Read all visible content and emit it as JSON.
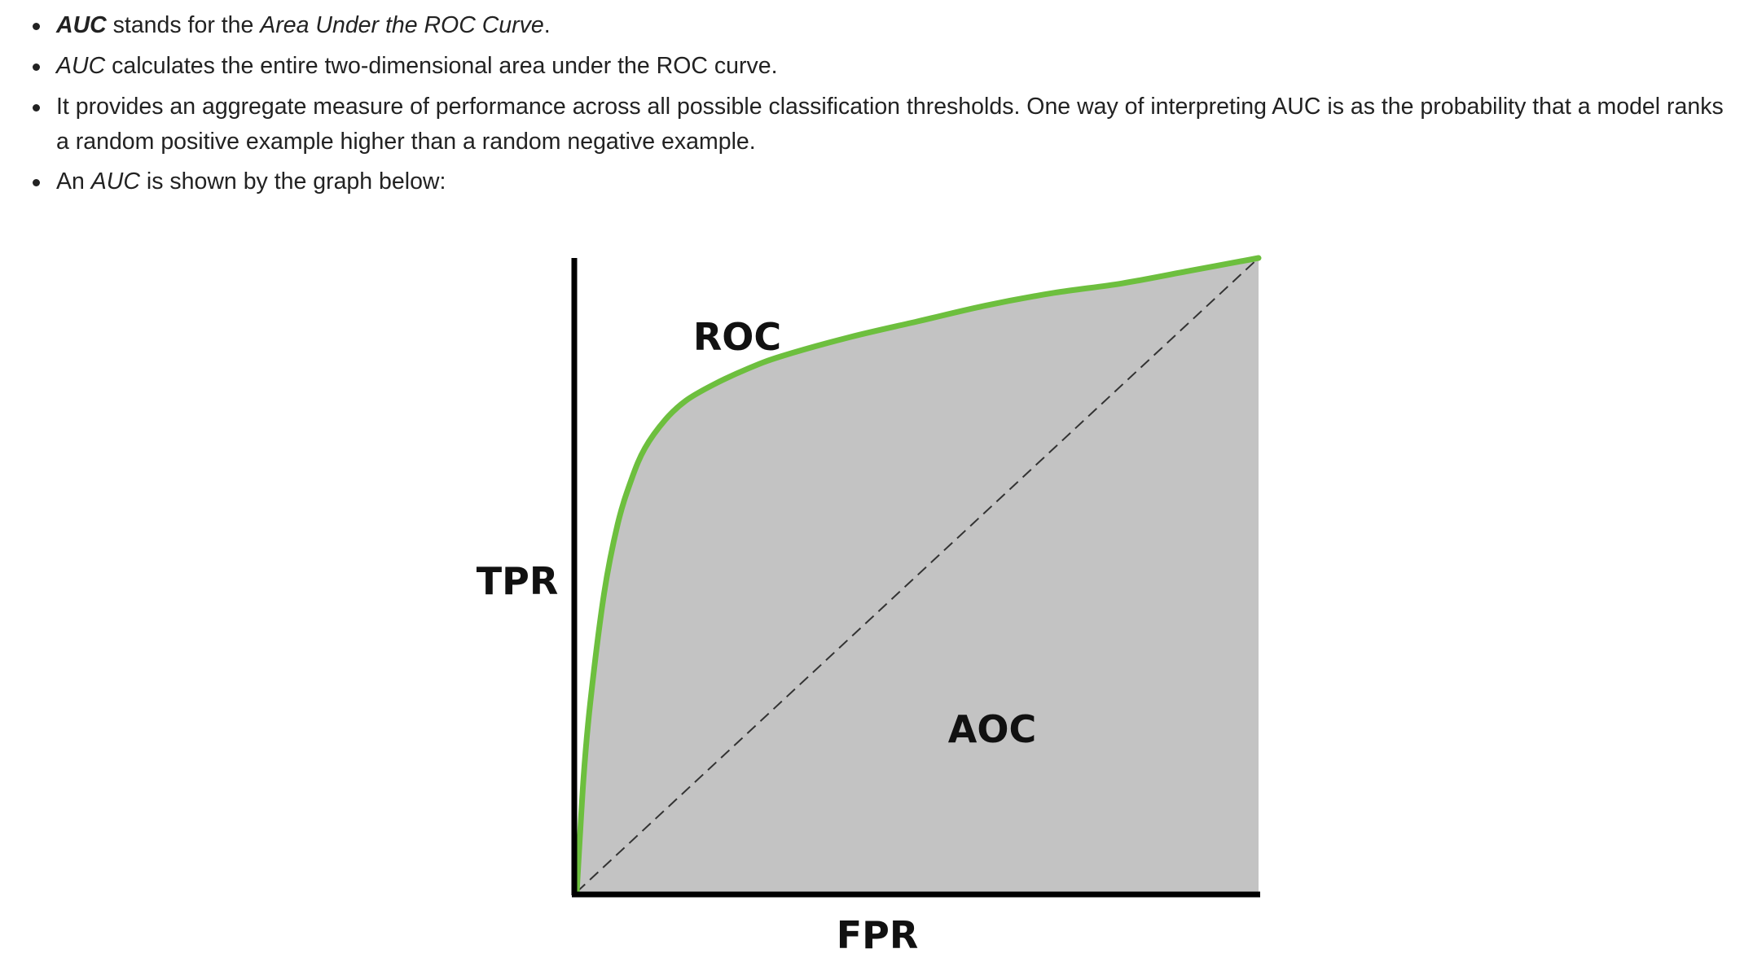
{
  "bullets": [
    {
      "a": "AUC",
      "b": " stands for the ",
      "c": "Area Under the ROC Curve",
      "d": "."
    },
    {
      "a": "AUC",
      "b": " calculates the entire two-dimensional area under the ROC curve."
    },
    {
      "text": "It provides an aggregate measure of performance across all possible classification thresholds. One way of interpreting AUC is as the probability that a model ranks a random positive example higher than a random negative example."
    },
    {
      "a": "An ",
      "b": "AUC",
      "c": " is shown by the graph below:"
    }
  ],
  "figure": {
    "curve_label": "ROC",
    "area_label": "AOC",
    "ylabel": "TPR",
    "xlabel": "FPR",
    "colors": {
      "curve": "#6dbf3e",
      "area": "#c3c3c3",
      "axes": "#000000",
      "diagonal": "#333333"
    }
  },
  "chart_data": {
    "type": "area",
    "x": [
      0,
      0.01,
      0.02,
      0.04,
      0.06,
      0.08,
      0.1,
      0.13,
      0.16,
      0.2,
      0.25,
      0.3,
      0.4,
      0.5,
      0.6,
      0.7,
      0.8,
      0.9,
      1.0
    ],
    "series": [
      {
        "name": "ROC",
        "values": [
          0,
          0.18,
          0.3,
          0.47,
          0.58,
          0.65,
          0.7,
          0.745,
          0.775,
          0.8,
          0.825,
          0.845,
          0.875,
          0.9,
          0.925,
          0.945,
          0.96,
          0.98,
          1.0
        ]
      }
    ],
    "reference_line": {
      "x": [
        0,
        1
      ],
      "y": [
        0,
        1
      ],
      "style": "dashed"
    },
    "title": "",
    "xlabel": "FPR",
    "ylabel": "TPR",
    "xlim": [
      0,
      1
    ],
    "ylim": [
      0,
      1
    ],
    "annotations": [
      "ROC",
      "AOC"
    ],
    "grid": false
  }
}
